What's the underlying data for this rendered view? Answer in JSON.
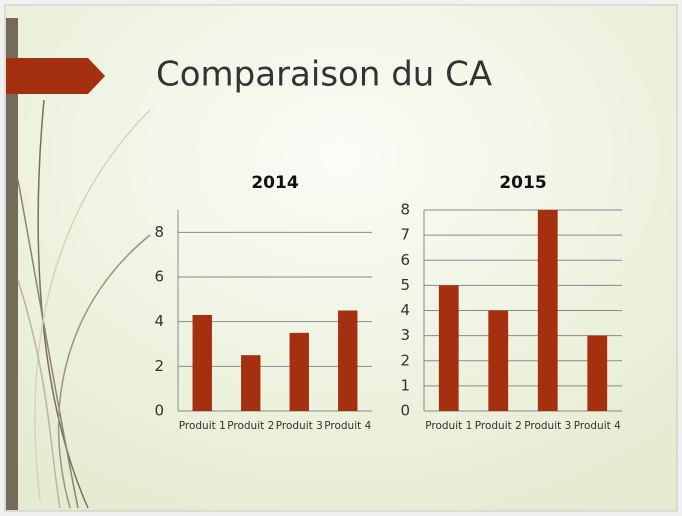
{
  "slide": {
    "title": "Comparaison du CA"
  },
  "chart_data": [
    {
      "type": "bar",
      "title": "2014",
      "categories": [
        "Produit 1",
        "Produit 2",
        "Produit 3",
        "Produit 4"
      ],
      "values": [
        4.3,
        2.5,
        3.5,
        4.5
      ],
      "color": "#a5300f",
      "ylim": [
        0,
        9
      ],
      "yticks": [
        0,
        2,
        4,
        6,
        8
      ],
      "grid": true
    },
    {
      "type": "bar",
      "title": "2015",
      "categories": [
        "Produit 1",
        "Produit 2",
        "Produit 3",
        "Produit 4"
      ],
      "values": [
        5,
        4,
        8,
        3
      ],
      "color": "#a5300f",
      "ylim": [
        0,
        8
      ],
      "yticks": [
        0,
        1,
        2,
        3,
        4,
        5,
        6,
        7,
        8
      ],
      "grid": true
    }
  ]
}
